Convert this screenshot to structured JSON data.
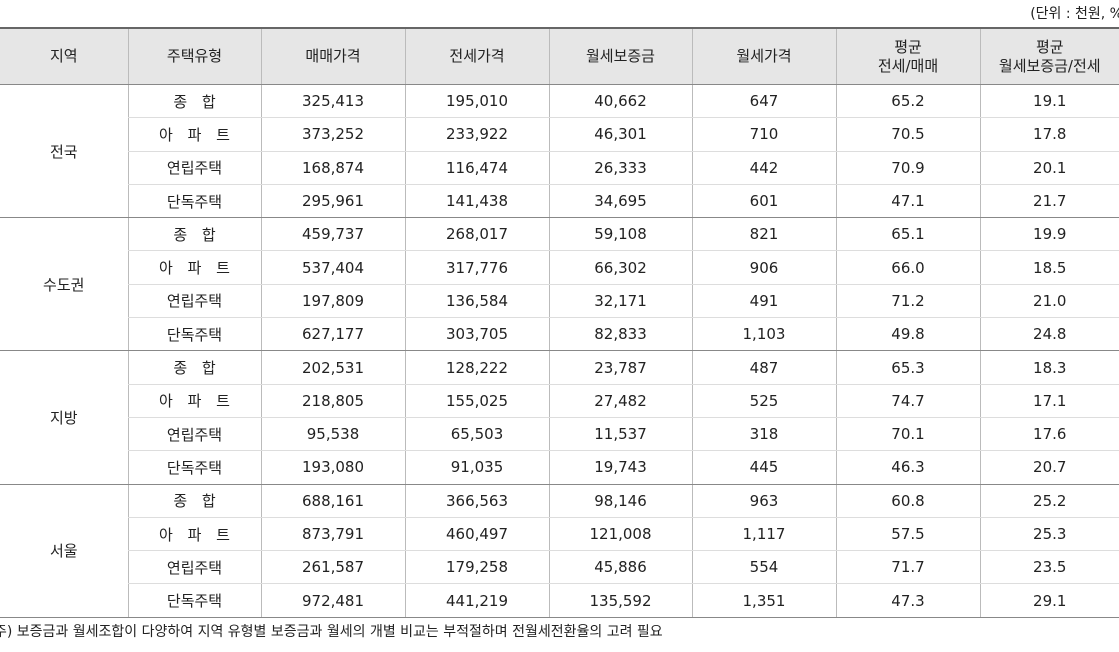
{
  "unit": "(단위 : 천원, %",
  "table": {
    "header": [
      "지역",
      "주택유형",
      "매매가격",
      "전세가격",
      "월세보증금",
      "월세가격",
      [
        "평균",
        "전세/매매"
      ],
      [
        "평균",
        "월세보증금/전세"
      ]
    ],
    "groups": [
      {
        "region": "전국",
        "rows": [
          [
            "종 합",
            "325,413",
            "195,010",
            "40,662",
            "647",
            "65.2",
            "19.1"
          ],
          [
            "아 파 트",
            "373,252",
            "233,922",
            "46,301",
            "710",
            "70.5",
            "17.8"
          ],
          [
            "연립주택",
            "168,874",
            "116,474",
            "26,333",
            "442",
            "70.9",
            "20.1"
          ],
          [
            "단독주택",
            "295,961",
            "141,438",
            "34,695",
            "601",
            "47.1",
            "21.7"
          ]
        ]
      },
      {
        "region": "수도권",
        "rows": [
          [
            "종 합",
            "459,737",
            "268,017",
            "59,108",
            "821",
            "65.1",
            "19.9"
          ],
          [
            "아 파 트",
            "537,404",
            "317,776",
            "66,302",
            "906",
            "66.0",
            "18.5"
          ],
          [
            "연립주택",
            "197,809",
            "136,584",
            "32,171",
            "491",
            "71.2",
            "21.0"
          ],
          [
            "단독주택",
            "627,177",
            "303,705",
            "82,833",
            "1,103",
            "49.8",
            "24.8"
          ]
        ]
      },
      {
        "region": "지방",
        "rows": [
          [
            "종 합",
            "202,531",
            "128,222",
            "23,787",
            "487",
            "65.3",
            "18.3"
          ],
          [
            "아 파 트",
            "218,805",
            "155,025",
            "27,482",
            "525",
            "74.7",
            "17.1"
          ],
          [
            "연립주택",
            "95,538",
            "65,503",
            "11,537",
            "318",
            "70.1",
            "17.6"
          ],
          [
            "단독주택",
            "193,080",
            "91,035",
            "19,743",
            "445",
            "46.3",
            "20.7"
          ]
        ]
      },
      {
        "region": "서울",
        "rows": [
          [
            "종 합",
            "688,161",
            "366,563",
            "98,146",
            "963",
            "60.8",
            "25.2"
          ],
          [
            "아 파 트",
            "873,791",
            "460,497",
            "121,008",
            "1,117",
            "57.5",
            "25.3"
          ],
          [
            "연립주택",
            "261,587",
            "179,258",
            "45,886",
            "554",
            "71.7",
            "23.5"
          ],
          [
            "단독주택",
            "972,481",
            "441,219",
            "135,592",
            "1,351",
            "47.3",
            "29.1"
          ]
        ]
      }
    ]
  },
  "footnote": "주) 보증금과 월세조합이 다양하여 지역 유형별 보증금과 월세의 개별 비교는 부적절하며 전월세전환율의 고려 필요"
}
